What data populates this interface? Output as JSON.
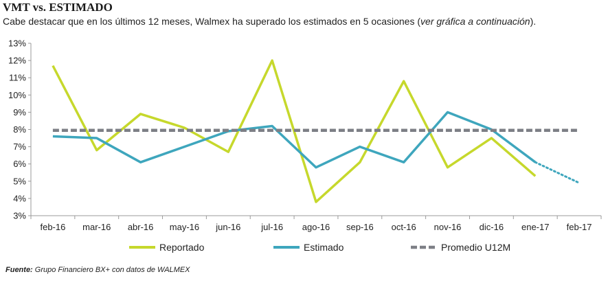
{
  "header": {
    "title": "VMT vs. ESTIMADO",
    "subtitle_main": "Cabe destacar que en los últimos 12 meses, Walmex ha superado los estimados en 5 ocasiones (",
    "subtitle_italic": "ver gráfica a continuación",
    "subtitle_end": ")."
  },
  "footer": {
    "source_label": "Fuente:",
    "source_text": " Grupo Financiero BX+ con datos de WALMEX"
  },
  "chart_data": {
    "type": "line",
    "categories": [
      "feb-16",
      "mar-16",
      "abr-16",
      "may-16",
      "jun-16",
      "jul-16",
      "ago-16",
      "sep-16",
      "oct-16",
      "nov-16",
      "dic-16",
      "ene-17",
      "feb-17"
    ],
    "y_ticks": [
      "3%",
      "4%",
      "5%",
      "6%",
      "7%",
      "8%",
      "9%",
      "10%",
      "11%",
      "12%",
      "13%"
    ],
    "ylim": [
      3,
      13
    ],
    "grid": false,
    "legend_position": "bottom",
    "series": [
      {
        "name": "Reportado",
        "color": "#c6d82c",
        "style": "solid",
        "values": [
          11.7,
          6.8,
          8.9,
          8.1,
          6.7,
          12.0,
          3.8,
          6.1,
          10.8,
          5.8,
          7.5,
          5.3,
          null
        ]
      },
      {
        "name": "Estimado",
        "color": "#3ea6bd",
        "style": "solid",
        "projected_last": true,
        "values": [
          7.6,
          7.5,
          6.1,
          7.0,
          7.9,
          8.2,
          5.8,
          7.0,
          6.1,
          9.0,
          8.0,
          6.1,
          4.9
        ]
      },
      {
        "name": "Promedio U12M",
        "color": "#7d7f86",
        "style": "dashed",
        "values": [
          7.95,
          7.95,
          7.95,
          7.95,
          7.95,
          7.95,
          7.95,
          7.95,
          7.95,
          7.95,
          7.95,
          7.95,
          7.95
        ]
      }
    ]
  }
}
